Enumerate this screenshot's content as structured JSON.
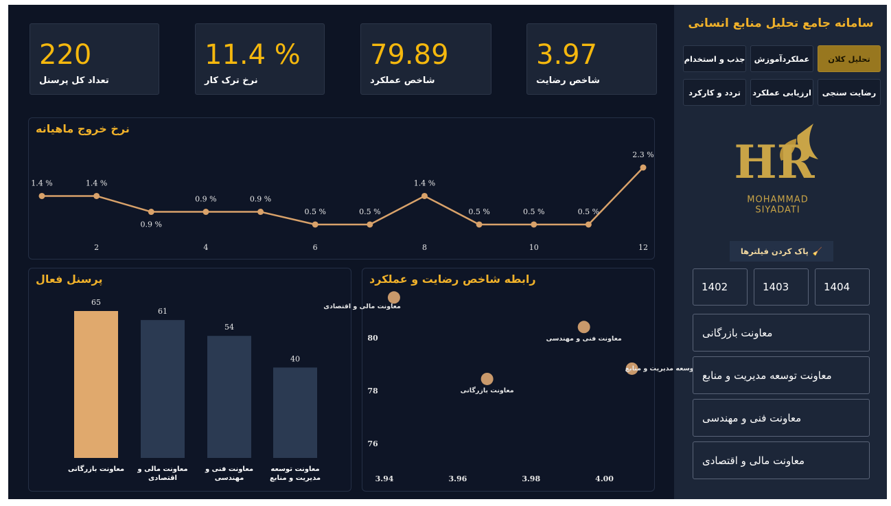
{
  "sidebar": {
    "title": "سامانه جامع تحلیل منابع انسانی",
    "tabs": [
      "تحلیل کلان",
      "عملکردآموزش",
      "جذب و استخدام",
      "رضایت سنجی",
      "ارزیابی عملکرد",
      "تردد و کارکرد"
    ],
    "active_tab": 0,
    "logo": {
      "line1": "MOHAMMAD",
      "line2": "SIYADATI"
    },
    "clear_filters": "پاک کردن فیلترها",
    "years": [
      "1402",
      "1403",
      "1404"
    ],
    "departments": [
      "معاونت بازرگانی",
      "معاونت توسعه مدیریت و منابع",
      "معاونت فنی و مهندسی",
      "معاونت مالی و اقتصادی"
    ]
  },
  "kpis": [
    {
      "value": "220",
      "label": "تعداد کل پرسنل"
    },
    {
      "value": "11.4 %",
      "label": "نرخ ترک کار"
    },
    {
      "value": "79.89",
      "label": "شاخص عملکرد"
    },
    {
      "value": "3.97",
      "label": "شاخص رضایت"
    }
  ],
  "chart_data": [
    {
      "type": "line",
      "title": "نرخ خروج ماهیانه",
      "x": [
        1,
        2,
        3,
        4,
        5,
        6,
        7,
        8,
        9,
        10,
        11,
        12
      ],
      "values": [
        1.4,
        1.4,
        0.9,
        0.9,
        0.9,
        0.5,
        0.5,
        1.4,
        0.5,
        0.5,
        0.5,
        2.3
      ],
      "value_labels": [
        "1.4 %",
        "1.4 %",
        "0.9 %",
        "0.9 %",
        "0.9 %",
        "0.5 %",
        "0.5 %",
        "1.4 %",
        "0.5 %",
        "0.5 %",
        "0.5 %",
        "2.3 %"
      ],
      "xlim": [
        1,
        12
      ],
      "xticks": [
        2,
        4,
        6,
        8,
        10,
        12
      ],
      "color": "#d9a26a"
    },
    {
      "type": "bar",
      "title": "پرسنل فعال",
      "categories": [
        "معاونت بازرگانی",
        "معاونت مالی و اقتصادی",
        "معاونت فنی و مهندسی",
        "معاونت توسعه مدیریت و منابع"
      ],
      "values": [
        65,
        61,
        54,
        40
      ],
      "colors": [
        "#e0a96d",
        "#2b3a52",
        "#2b3a52",
        "#2b3a52"
      ]
    },
    {
      "type": "scatter",
      "title": "رابطه شاخص رضایت و عملکرد",
      "x": [
        3.9426,
        3.9944,
        4.0075,
        3.968
      ],
      "y": [
        81.56,
        80.44,
        78.86,
        78.47
      ],
      "labels": [
        "معاونت مالی و اقتصادی",
        "معاونت فنی و مهندسی",
        "معاونت توسعه مدیریت و منابع",
        "معاونت بازرگانی"
      ],
      "xlim": [
        3.937,
        4.01
      ],
      "ylim": [
        75.5,
        81.75
      ],
      "xticks": [
        3.94,
        3.96,
        3.98,
        {
          "value": 4,
          "label": "4.00"
        }
      ],
      "yticks": [
        76,
        78,
        80
      ],
      "color": "#c9996b"
    }
  ]
}
